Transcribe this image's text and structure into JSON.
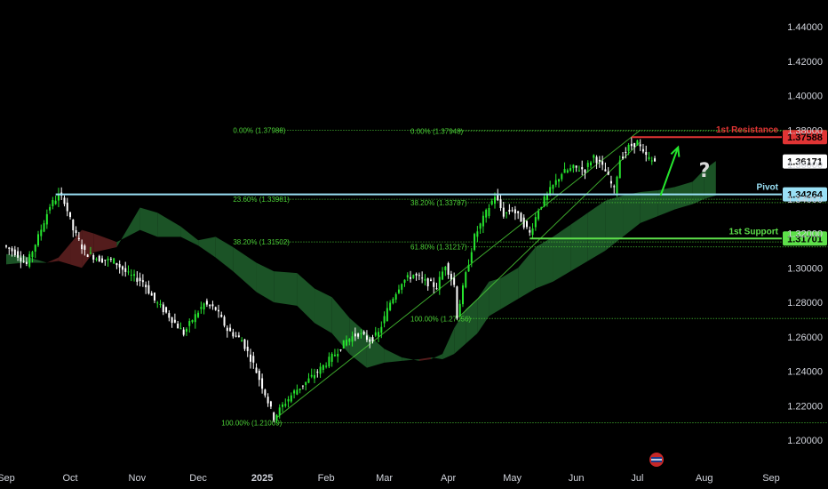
{
  "chart_data": {
    "type": "candlestick",
    "ylim": [
      1.195,
      1.455
    ],
    "y_ticks": [
      "1.20000",
      "1.22000",
      "1.24000",
      "1.26000",
      "1.28000",
      "1.30000",
      "1.32000",
      "1.34000",
      "1.36000",
      "1.38000",
      "1.40000",
      "1.42000",
      "1.44000"
    ],
    "x_ticks": [
      {
        "label": "Sep",
        "t": 0,
        "bold": false
      },
      {
        "label": "Oct",
        "t": 22,
        "bold": false
      },
      {
        "label": "Nov",
        "t": 45,
        "bold": false
      },
      {
        "label": "Dec",
        "t": 66,
        "bold": false
      },
      {
        "label": "2025",
        "t": 88,
        "bold": true
      },
      {
        "label": "Feb",
        "t": 110,
        "bold": false
      },
      {
        "label": "Mar",
        "t": 130,
        "bold": false
      },
      {
        "label": "Apr",
        "t": 152,
        "bold": false
      },
      {
        "label": "May",
        "t": 174,
        "bold": false
      },
      {
        "label": "Jun",
        "t": 196,
        "bold": false
      },
      {
        "label": "Jul",
        "t": 217,
        "bold": false
      },
      {
        "label": "Aug",
        "t": 240,
        "bold": false
      },
      {
        "label": "Sep",
        "t": 263,
        "bold": false
      }
    ],
    "x_domain": [
      0,
      284
    ],
    "price_path": [
      [
        0,
        1.313
      ],
      [
        4,
        1.309
      ],
      [
        8,
        1.302
      ],
      [
        12,
        1.318
      ],
      [
        16,
        1.336
      ],
      [
        19,
        1.342
      ],
      [
        21,
        1.339
      ],
      [
        24,
        1.322
      ],
      [
        28,
        1.309
      ],
      [
        33,
        1.305
      ],
      [
        38,
        1.304
      ],
      [
        43,
        1.296
      ],
      [
        48,
        1.292
      ],
      [
        52,
        1.281
      ],
      [
        57,
        1.272
      ],
      [
        62,
        1.262
      ],
      [
        65,
        1.27
      ],
      [
        69,
        1.279
      ],
      [
        73,
        1.276
      ],
      [
        77,
        1.264
      ],
      [
        82,
        1.258
      ],
      [
        86,
        1.244
      ],
      [
        90,
        1.227
      ],
      [
        93,
        1.213
      ],
      [
        96,
        1.22
      ],
      [
        100,
        1.228
      ],
      [
        105,
        1.235
      ],
      [
        110,
        1.243
      ],
      [
        114,
        1.25
      ],
      [
        118,
        1.258
      ],
      [
        122,
        1.262
      ],
      [
        126,
        1.258
      ],
      [
        129,
        1.262
      ],
      [
        133,
        1.28
      ],
      [
        137,
        1.292
      ],
      [
        141,
        1.296
      ],
      [
        145,
        1.292
      ],
      [
        149,
        1.289
      ],
      [
        152,
        1.302
      ],
      [
        155,
        1.29
      ],
      [
        156,
        1.272
      ],
      [
        159,
        1.296
      ],
      [
        162,
        1.318
      ],
      [
        166,
        1.332
      ],
      [
        169,
        1.342
      ],
      [
        172,
        1.331
      ],
      [
        175,
        1.334
      ],
      [
        178,
        1.328
      ],
      [
        181,
        1.32
      ],
      [
        184,
        1.334
      ],
      [
        188,
        1.345
      ],
      [
        192,
        1.355
      ],
      [
        196,
        1.358
      ],
      [
        200,
        1.357
      ],
      [
        203,
        1.365
      ],
      [
        207,
        1.356
      ],
      [
        210,
        1.345
      ],
      [
        212,
        1.363
      ],
      [
        215,
        1.37
      ],
      [
        218,
        1.373
      ],
      [
        220,
        1.366
      ],
      [
        223,
        1.362
      ]
    ],
    "cloud": [
      [
        0,
        1.308,
        1.302,
        1.302
      ],
      [
        6,
        1.307,
        1.303,
        1.306
      ],
      [
        14,
        1.303,
        1.303,
        1.303
      ],
      [
        18,
        1.304,
        1.306,
        1.313
      ],
      [
        22,
        1.302,
        1.314,
        1.322
      ],
      [
        26,
        1.3,
        1.322,
        1.326
      ],
      [
        30,
        1.309,
        1.32,
        1.315
      ],
      [
        38,
        1.312,
        1.315,
        1.318
      ],
      [
        46,
        1.335,
        1.322,
        1.313
      ],
      [
        52,
        1.332,
        1.318,
        1.313
      ],
      [
        60,
        1.324,
        1.318,
        1.317
      ],
      [
        66,
        1.316,
        1.313,
        1.312
      ],
      [
        72,
        1.318,
        1.306,
        1.305
      ],
      [
        78,
        1.312,
        1.298,
        1.299
      ],
      [
        86,
        1.303,
        1.286,
        1.29
      ],
      [
        92,
        1.298,
        1.28,
        1.28
      ],
      [
        100,
        1.297,
        1.278,
        1.276
      ],
      [
        106,
        1.288,
        1.268,
        1.264
      ],
      [
        112,
        1.283,
        1.262,
        1.258
      ],
      [
        118,
        1.271,
        1.25,
        1.248
      ],
      [
        124,
        1.262,
        1.242,
        1.243
      ],
      [
        130,
        1.253,
        1.245,
        1.244
      ],
      [
        136,
        1.248,
        1.246,
        1.245
      ],
      [
        142,
        1.246,
        1.247,
        1.247
      ],
      [
        146,
        1.247,
        1.248,
        1.25
      ],
      [
        150,
        1.25,
        1.247,
        1.252
      ],
      [
        154,
        1.265,
        1.25,
        1.258
      ],
      [
        158,
        1.276,
        1.256,
        1.27
      ],
      [
        162,
        1.282,
        1.262,
        1.282
      ],
      [
        166,
        1.292,
        1.272,
        1.284
      ],
      [
        170,
        1.294,
        1.276,
        1.288
      ],
      [
        176,
        1.3,
        1.282,
        1.292
      ],
      [
        182,
        1.312,
        1.288,
        1.301
      ],
      [
        188,
        1.318,
        1.292,
        1.306
      ],
      [
        194,
        1.325,
        1.298,
        1.314
      ],
      [
        200,
        1.332,
        1.304,
        1.318
      ],
      [
        206,
        1.339,
        1.31,
        1.323
      ],
      [
        212,
        1.342,
        1.318,
        1.328
      ],
      [
        218,
        1.344,
        1.326,
        1.332
      ],
      [
        224,
        1.345,
        1.33,
        1.336
      ],
      [
        230,
        1.347,
        1.334,
        1.34
      ],
      [
        236,
        1.35,
        1.337,
        1.345
      ],
      [
        240,
        1.357,
        1.34,
        1.352
      ],
      [
        244,
        1.362,
        1.342,
        1.356
      ]
    ],
    "ribbon_colors": {
      "up": "#1e5c2a",
      "down": "#5c1f1f"
    },
    "current_price": "1.36171",
    "fib_lines": [
      {
        "label": "0.00% (1.37988)",
        "price": 1.37988,
        "t_from": 93,
        "t_to": 284,
        "label_t": 78
      },
      {
        "label": "23.60% (1.33981)",
        "price": 1.33981,
        "t_from": 93,
        "t_to": 284,
        "label_t": 78
      },
      {
        "label": "38.20% (1.31502)",
        "price": 1.31502,
        "t_from": 93,
        "t_to": 284,
        "label_t": 78
      },
      {
        "label": "100.00% (1.21009)",
        "price": 1.21009,
        "t_from": 93,
        "t_to": 284,
        "label_t": 74
      },
      {
        "label": "0.00% (1.37948)",
        "price": 1.37948,
        "t_from": 156,
        "t_to": 284,
        "label_t": 139
      },
      {
        "label": "38.20% (1.33787)",
        "price": 1.33787,
        "t_from": 156,
        "t_to": 284,
        "label_t": 139
      },
      {
        "label": "61.80% (1.31217)",
        "price": 1.31217,
        "t_from": 156,
        "t_to": 284,
        "label_t": 139
      },
      {
        "label": "100.00% (1.27056)",
        "price": 1.27056,
        "t_from": 156,
        "t_to": 284,
        "label_t": 139
      }
    ],
    "levels": [
      {
        "name": "1st Resistance",
        "price": 1.37588,
        "price_label": "1.37588",
        "color": "#e03434",
        "t_from": 215,
        "t_to": 284
      },
      {
        "name": "Pivot",
        "price": 1.34264,
        "price_label": "1.34264",
        "color": "#9ae0f5",
        "t_from": 17,
        "t_to": 284
      },
      {
        "name": "1st Support",
        "price": 1.31701,
        "price_label": "1.31701",
        "color": "#5de04a",
        "t_from": 180,
        "t_to": 284
      }
    ],
    "channel": [
      [
        93,
        1.213
      ],
      [
        218,
        1.38
      ],
      [
        156,
        1.272
      ],
      [
        218,
        1.373
      ]
    ],
    "arrow": {
      "from": [
        225,
        1.342
      ],
      "to": [
        231,
        1.37
      ]
    },
    "question_mark": "?",
    "event_icon": "flag-event-icon"
  }
}
